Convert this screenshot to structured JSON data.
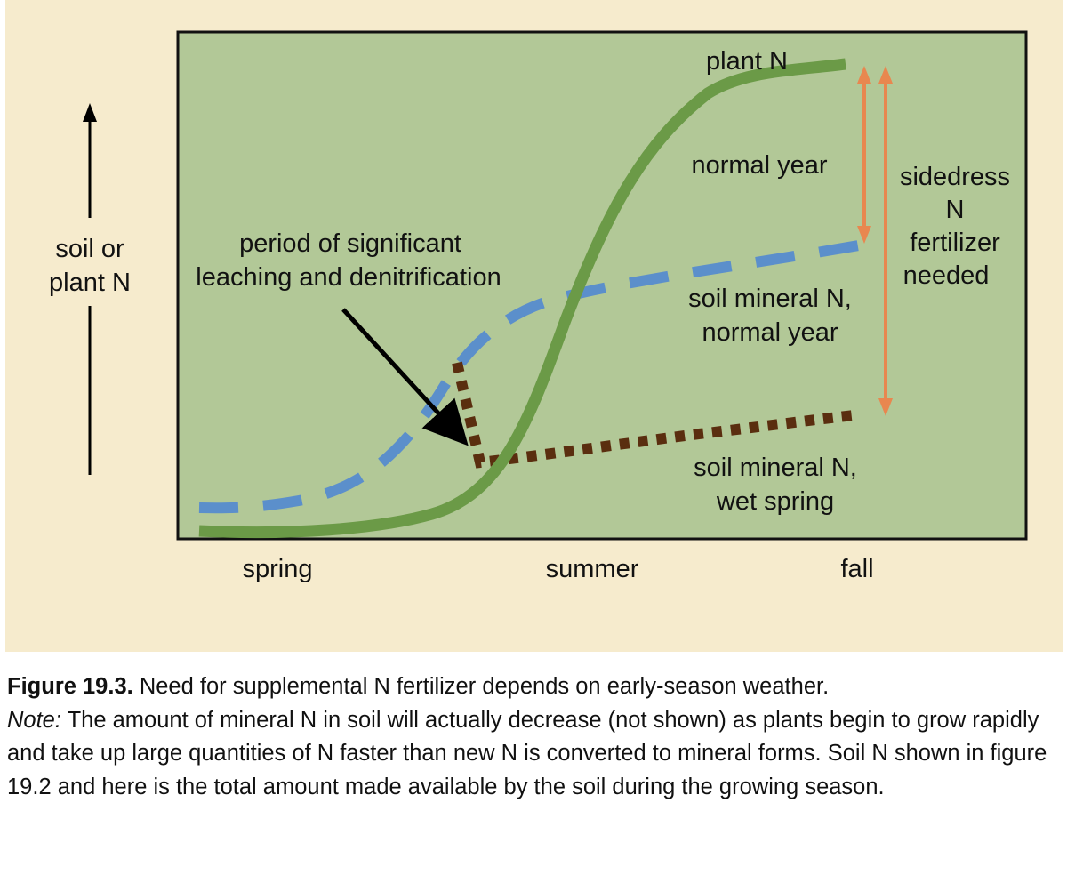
{
  "figure": {
    "y_axis_label": [
      "soil or",
      "plant N"
    ],
    "x_ticks": [
      "spring",
      "summer",
      "fall"
    ],
    "annotations": {
      "plant_n": "plant N",
      "normal_year": "normal year",
      "sidedress": [
        "sidedress",
        "N",
        "fertilizer",
        "needed"
      ],
      "leaching": [
        "period of significant",
        "leaching and denitrification"
      ],
      "soil_normal": [
        "soil mineral N,",
        "normal year"
      ],
      "soil_wet": [
        "soil mineral N,",
        "wet spring"
      ]
    },
    "colors": {
      "panel_bg": "#f6ebcd",
      "plot_bg": "#b2c897",
      "plant_n_line": "#6b9a47",
      "soil_normal_line": "#5b8fcb",
      "soil_wet_line": "#5a2e0f",
      "arrow_color": "#e8874f"
    }
  },
  "caption": {
    "label": "Figure 19.3.",
    "text": " Need for supplemental N fertilizer depends on early-season weather.",
    "note_label": "Note:",
    "note_text": " The amount of mineral N in soil will actually decrease (not shown) as plants begin to grow rapidly and take up large quantities of N faster than new N is converted to mineral forms. Soil N shown in figure 19.2 and here is the total amount made available by the soil during the growing season."
  }
}
